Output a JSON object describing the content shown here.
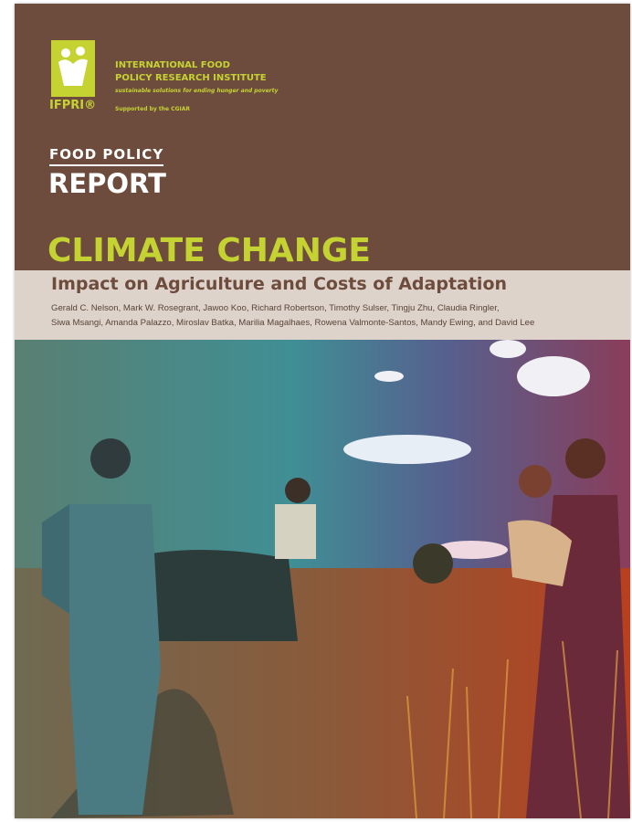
{
  "logo": {
    "mark": "IFPRI®",
    "name_line1": "INTERNATIONAL FOOD",
    "name_line2": "POLICY RESEARCH INSTITUTE",
    "tagline": "sustainable solutions for ending hunger and poverty",
    "support": "Supported by the CGIAR"
  },
  "series": {
    "line1": "FOOD POLICY",
    "line2": "REPORT"
  },
  "title": "CLIMATE CHANGE",
  "subtitle": "Impact on Agriculture and Costs of Adaptation",
  "authors": [
    "Gerald C. Nelson, Mark W. Rosegrant, Jawoo Koo, Richard Robertson, Timothy Sulser, Tingju Zhu, Claudia Ringler,",
    "Siwa Msangi, Amanda Palazzo, Miroslav Batka, Marilia Magalhaes, Rowena Valmonte-Santos, Mandy Ewing, and David Lee"
  ]
}
